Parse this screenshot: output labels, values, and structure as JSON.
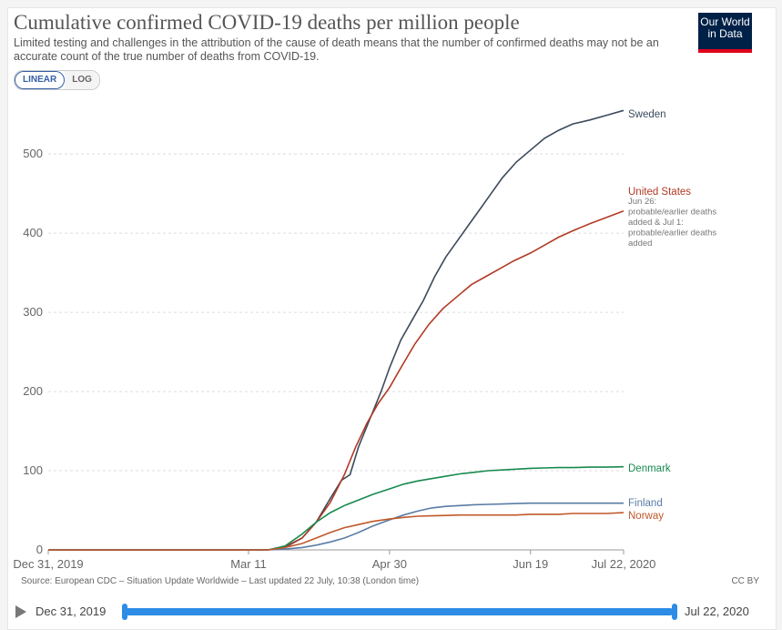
{
  "header": {
    "title": "Cumulative confirmed COVID-19 deaths per million people",
    "subtitle": "Limited testing and challenges in the attribution of the cause of death means that the number of confirmed deaths may not be an accurate count of the true number of deaths from COVID-19.",
    "logo_line1": "Our World",
    "logo_line2": "in Data"
  },
  "controls": {
    "linear": "LINEAR",
    "log": "LOG"
  },
  "footer": {
    "source": "Source: European CDC – Situation Update Worldwide – Last updated 22 July, 10:38 (London time)",
    "license": "CC BY"
  },
  "timeline": {
    "start": "Dec 31, 2019",
    "end": "Jul 22, 2020"
  },
  "colors": {
    "Sweden": "#3b4a5c",
    "United States": "#b13a24",
    "Denmark": "#178a4e",
    "Finland": "#5a7ca6",
    "Norway": "#c1582a"
  },
  "chart_data": {
    "type": "line",
    "title": "Cumulative confirmed COVID-19 deaths per million people",
    "xlabel": "",
    "ylabel": "",
    "x_range_days": [
      0,
      204
    ],
    "ylim": [
      0,
      560
    ],
    "yticks": [
      0,
      100,
      200,
      300,
      400,
      500
    ],
    "xtick_labels": [
      {
        "day": 0,
        "label": "Dec 31, 2019"
      },
      {
        "day": 71,
        "label": "Mar 11"
      },
      {
        "day": 121,
        "label": "Apr 30"
      },
      {
        "day": 171,
        "label": "Jun 19"
      },
      {
        "day": 204,
        "label": "Jul 22, 2020"
      }
    ],
    "grid": "horizontal",
    "series": [
      {
        "name": "Sweden",
        "annotation": "",
        "points": [
          [
            0,
            0
          ],
          [
            78,
            0
          ],
          [
            84,
            3
          ],
          [
            90,
            15
          ],
          [
            95,
            35
          ],
          [
            100,
            65
          ],
          [
            104,
            88
          ],
          [
            107,
            95
          ],
          [
            110,
            130
          ],
          [
            114,
            165
          ],
          [
            118,
            200
          ],
          [
            121,
            230
          ],
          [
            125,
            265
          ],
          [
            129,
            290
          ],
          [
            133,
            315
          ],
          [
            137,
            345
          ],
          [
            141,
            370
          ],
          [
            145,
            390
          ],
          [
            149,
            410
          ],
          [
            153,
            430
          ],
          [
            157,
            450
          ],
          [
            161,
            470
          ],
          [
            166,
            490
          ],
          [
            171,
            505
          ],
          [
            176,
            520
          ],
          [
            181,
            530
          ],
          [
            186,
            538
          ],
          [
            192,
            543
          ],
          [
            198,
            549
          ],
          [
            204,
            555
          ]
        ]
      },
      {
        "name": "United States",
        "annotation": "Jun 26: probable/earlier deaths added & Jul 1: probable/earlier deaths added",
        "points": [
          [
            0,
            0
          ],
          [
            78,
            0
          ],
          [
            84,
            4
          ],
          [
            90,
            15
          ],
          [
            95,
            35
          ],
          [
            100,
            60
          ],
          [
            105,
            95
          ],
          [
            109,
            130
          ],
          [
            113,
            160
          ],
          [
            117,
            185
          ],
          [
            121,
            205
          ],
          [
            125,
            230
          ],
          [
            130,
            260
          ],
          [
            135,
            285
          ],
          [
            140,
            305
          ],
          [
            145,
            320
          ],
          [
            150,
            335
          ],
          [
            155,
            345
          ],
          [
            160,
            355
          ],
          [
            165,
            365
          ],
          [
            171,
            375
          ],
          [
            176,
            385
          ],
          [
            181,
            395
          ],
          [
            186,
            403
          ],
          [
            192,
            412
          ],
          [
            198,
            420
          ],
          [
            204,
            428
          ]
        ]
      },
      {
        "name": "Denmark",
        "annotation": "",
        "points": [
          [
            0,
            0
          ],
          [
            78,
            0
          ],
          [
            84,
            5
          ],
          [
            90,
            20
          ],
          [
            95,
            35
          ],
          [
            100,
            47
          ],
          [
            105,
            56
          ],
          [
            110,
            63
          ],
          [
            115,
            70
          ],
          [
            121,
            77
          ],
          [
            126,
            83
          ],
          [
            131,
            87
          ],
          [
            136,
            90
          ],
          [
            141,
            93
          ],
          [
            146,
            96
          ],
          [
            151,
            98
          ],
          [
            156,
            100
          ],
          [
            161,
            101
          ],
          [
            166,
            102
          ],
          [
            171,
            103
          ],
          [
            176,
            103.5
          ],
          [
            181,
            104
          ],
          [
            186,
            104
          ],
          [
            192,
            104.5
          ],
          [
            198,
            104.5
          ],
          [
            204,
            105
          ]
        ]
      },
      {
        "name": "Finland",
        "annotation": "",
        "points": [
          [
            0,
            0
          ],
          [
            78,
            0
          ],
          [
            84,
            1
          ],
          [
            90,
            3
          ],
          [
            95,
            6
          ],
          [
            100,
            10
          ],
          [
            105,
            15
          ],
          [
            110,
            22
          ],
          [
            115,
            30
          ],
          [
            121,
            38
          ],
          [
            126,
            44
          ],
          [
            131,
            49
          ],
          [
            136,
            53
          ],
          [
            141,
            55
          ],
          [
            146,
            56
          ],
          [
            151,
            57
          ],
          [
            156,
            57.5
          ],
          [
            161,
            58
          ],
          [
            166,
            58.5
          ],
          [
            171,
            59
          ],
          [
            176,
            59
          ],
          [
            181,
            59
          ],
          [
            186,
            59
          ],
          [
            192,
            59
          ],
          [
            198,
            59
          ],
          [
            204,
            59
          ]
        ]
      },
      {
        "name": "Norway",
        "annotation": "",
        "points": [
          [
            0,
            0
          ],
          [
            78,
            0
          ],
          [
            84,
            3
          ],
          [
            90,
            8
          ],
          [
            95,
            15
          ],
          [
            100,
            22
          ],
          [
            105,
            28
          ],
          [
            110,
            32
          ],
          [
            115,
            36
          ],
          [
            121,
            39
          ],
          [
            126,
            41
          ],
          [
            131,
            42.5
          ],
          [
            136,
            43
          ],
          [
            141,
            43.5
          ],
          [
            146,
            44
          ],
          [
            151,
            44
          ],
          [
            156,
            44
          ],
          [
            161,
            44
          ],
          [
            166,
            44
          ],
          [
            171,
            45
          ],
          [
            176,
            45
          ],
          [
            181,
            45
          ],
          [
            186,
            46
          ],
          [
            192,
            46
          ],
          [
            198,
            46
          ],
          [
            204,
            47
          ]
        ]
      }
    ]
  }
}
